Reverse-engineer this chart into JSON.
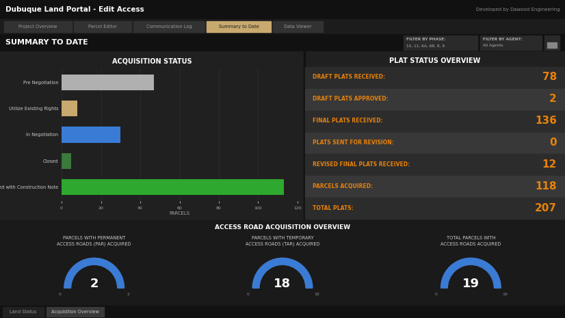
{
  "title": "Dubuque Land Portal - Edit Access",
  "subtitle": "SUMMARY TO DATE",
  "nav_tabs": [
    "Project Overview",
    "Parcel Editor",
    "Communication Log",
    "Summary to Date",
    "Data Viewer"
  ],
  "active_tab": "Summary to Date",
  "filter_phase": "10, 11, 6A, 6B, 8, 9",
  "filter_agent": "All Agents",
  "dev_credit": "Developed by Dawood Engineering",
  "acq_title": "ACQUISITION STATUS",
  "acq_categories": [
    "Closed with Construction Note",
    "Closed",
    "In Negotiation",
    "Utilize Existing Rights",
    "Pre Negotiation"
  ],
  "acq_values": [
    113,
    5,
    30,
    8,
    47
  ],
  "acq_colors": [
    "#2ea82e",
    "#3a7a3a",
    "#3a7bd5",
    "#c8a96e",
    "#b0b0b0"
  ],
  "acq_xlabel": "PARCELS",
  "acq_xlim": [
    0,
    120
  ],
  "acq_xticks": [
    0,
    20,
    40,
    60,
    80,
    100,
    120
  ],
  "plat_title": "PLAT STATUS OVERVIEW",
  "plat_labels": [
    "DRAFT PLATS RECEIVED:",
    "DRAFT PLATS APPROVED:",
    "FINAL PLATS RECEIVED:",
    "PLATS SENT FOR REVISION:",
    "REVISED FINAL PLATS RECEIVED:",
    "PARCELS ACQUIRED:",
    "TOTAL PLATS:"
  ],
  "plat_values": [
    "78",
    "2",
    "136",
    "0",
    "12",
    "118",
    "207"
  ],
  "access_title": "ACCESS ROAD ACQUISITION OVERVIEW",
  "access_items": [
    {
      "label1": "PARCELS WITH PERMANENT",
      "label2": "ACCESS ROADS (PAR) ACQUIRED",
      "value": 2,
      "max_val": 2
    },
    {
      "label1": "PARCELS WITH TEMPORARY",
      "label2": "ACCESS ROADS (TAR) ACQUIRED",
      "value": 18,
      "max_val": 18
    },
    {
      "label1": "TOTAL PARCELS WITH",
      "label2": "ACCESS ROADS ACQUIRED",
      "value": 19,
      "max_val": 19
    }
  ],
  "bg_color": "#1c1c1c",
  "topbar_color": "#111111",
  "navtab_bar_color": "#1c1c1c",
  "subtitlebar_color": "#111111",
  "content_bg": "#252525",
  "dark_row_color": "#2c2c2c",
  "light_row_color": "#383838",
  "orange_color": "#e8820c",
  "white_color": "#ffffff",
  "tab_active_color": "#c8a96e",
  "tab_inactive_color": "#323232",
  "tab_active_text": "#1a1a1a",
  "tab_inactive_text": "#999999",
  "gauge_color": "#3a7bd5",
  "gauge_bg_color": "#505050",
  "gauge_text_color": "#ffffff",
  "axis_label_color": "#aaaaaa",
  "bar_label_color": "#cccccc",
  "bottom_tab_active_bg": "#3a3a3a",
  "bottom_tab_inactive_bg": "#222222",
  "land_status_tab": "Land Status",
  "acq_overview_tab": "Acquisition Overview"
}
